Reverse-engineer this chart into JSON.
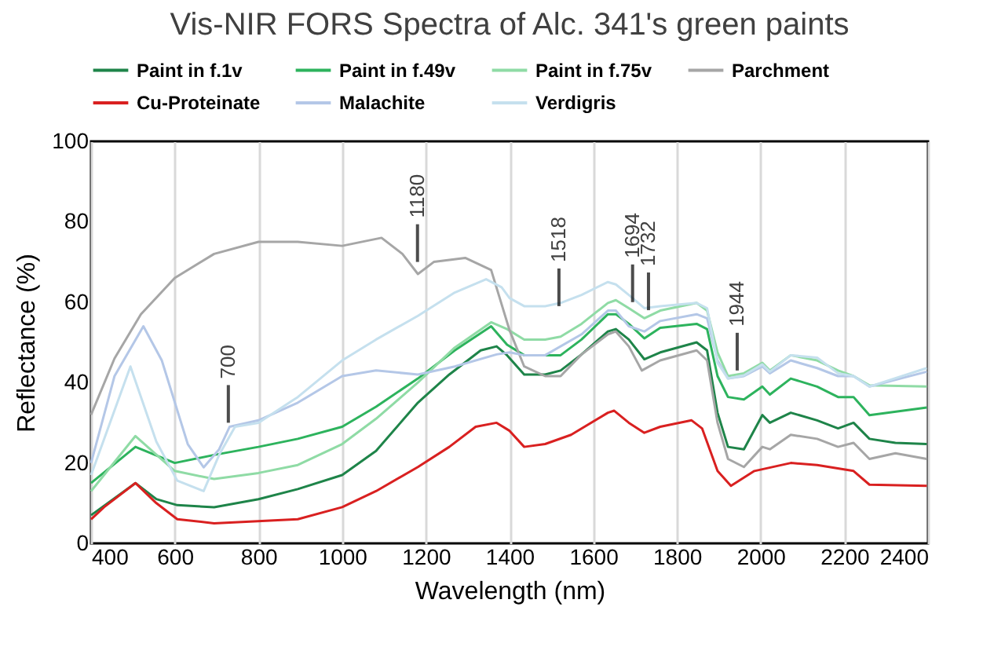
{
  "chart_data": {
    "type": "line",
    "title": "Vis-NIR FORS Spectra of Alc. 341's green paints",
    "xlabel": "Wavelength (nm)",
    "ylabel": "Reflectance (%)",
    "xlim": [
      400,
      2400
    ],
    "xticks": [
      400,
      600,
      800,
      1000,
      1200,
      1400,
      1600,
      1800,
      2000,
      2200,
      2400
    ],
    "ylim": [
      0,
      100
    ],
    "yticks": [
      0,
      20,
      40,
      60,
      80,
      100
    ],
    "grid": "x",
    "legend": "top",
    "annotations": [
      {
        "text": "700",
        "x": 728,
        "y": 30
      },
      {
        "text": "1180",
        "x": 1180,
        "y": 70
      },
      {
        "text": "1518",
        "x": 1518,
        "y": 59
      },
      {
        "text": "1694",
        "x": 1694,
        "y": 60
      },
      {
        "text": "1732",
        "x": 1732,
        "y": 58
      },
      {
        "text": "1944",
        "x": 1944,
        "y": 43
      }
    ],
    "series": [
      {
        "name": "Paint in f.1v",
        "color": "#1e8449",
        "x": [
          400,
          506,
          556,
          606,
          694,
          800,
          894,
          1000,
          1081,
          1181,
          1256,
          1331,
          1369,
          1394,
          1435,
          1485,
          1522,
          1572,
          1635,
          1654,
          1685,
          1722,
          1760,
          1847,
          1872,
          1897,
          1922,
          1960,
          2004,
          2022,
          2072,
          2135,
          2185,
          2222,
          2260,
          2322,
          2397
        ],
        "values": [
          7,
          15,
          11,
          9.5,
          9,
          11,
          13.5,
          17,
          23,
          35,
          42,
          48,
          49,
          46.8,
          42,
          42,
          43,
          47,
          52.7,
          53.3,
          50.7,
          45.8,
          47.5,
          50,
          48,
          32.5,
          24,
          23.4,
          31.9,
          30,
          32.5,
          30.6,
          28.6,
          30,
          26,
          25,
          24.7
        ]
      },
      {
        "name": "Paint in f.49v",
        "color": "#2db35d",
        "x": [
          400,
          506,
          600,
          694,
          800,
          894,
          1000,
          1081,
          1181,
          1269,
          1356,
          1394,
          1435,
          1485,
          1522,
          1572,
          1635,
          1654,
          1685,
          1722,
          1760,
          1847,
          1872,
          1897,
          1922,
          1960,
          2004,
          2022,
          2072,
          2135,
          2185,
          2222,
          2260,
          2397
        ],
        "values": [
          15,
          24,
          20,
          22,
          24,
          26,
          29,
          34,
          41,
          48,
          54,
          49.4,
          46.8,
          46.8,
          46.8,
          50.7,
          57,
          57,
          54.6,
          51,
          53.6,
          54.6,
          53.3,
          41.6,
          36.4,
          35.8,
          39,
          37,
          41,
          39,
          36.4,
          36.4,
          31.9,
          33.8
        ]
      },
      {
        "name": "Paint in f.75v",
        "color": "#8fdba5",
        "x": [
          400,
          506,
          600,
          694,
          800,
          894,
          1000,
          1081,
          1181,
          1269,
          1356,
          1394,
          1435,
          1485,
          1522,
          1572,
          1635,
          1654,
          1685,
          1722,
          1760,
          1847,
          1872,
          1897,
          1922,
          1960,
          2004,
          2022,
          2072,
          2135,
          2185,
          2222,
          2260,
          2397
        ],
        "values": [
          13,
          26.7,
          18,
          16,
          17.5,
          19.5,
          24.7,
          31,
          40,
          48.7,
          55,
          53.3,
          50.7,
          50.7,
          51.4,
          54.6,
          59.8,
          60.5,
          58.5,
          56,
          57.9,
          59.8,
          57.9,
          47.5,
          41.6,
          42.3,
          44.9,
          43,
          46.8,
          45.5,
          43,
          41.6,
          39.3,
          39
        ]
      },
      {
        "name": "Parchment",
        "color": "#a6a6a6",
        "x": [
          400,
          456,
          519,
          600,
          694,
          800,
          894,
          1000,
          1094,
          1144,
          1181,
          1219,
          1294,
          1356,
          1400,
          1435,
          1485,
          1522,
          1572,
          1635,
          1654,
          1685,
          1716,
          1760,
          1847,
          1872,
          1897,
          1922,
          1960,
          2004,
          2022,
          2072,
          2135,
          2185,
          2222,
          2260,
          2322,
          2397
        ],
        "values": [
          32,
          46,
          57,
          66,
          72,
          75,
          75,
          74,
          76,
          72,
          67,
          70,
          71,
          68,
          53,
          44,
          41.6,
          41.6,
          47,
          52,
          52.7,
          49,
          43,
          45.5,
          48,
          45.5,
          30,
          21,
          19,
          24,
          23.4,
          27,
          26,
          24,
          25,
          21,
          22.4,
          21
        ]
      },
      {
        "name": "Cu-Proteinate",
        "color": "#d92020",
        "x": [
          400,
          431,
          506,
          556,
          606,
          694,
          894,
          1000,
          1081,
          1181,
          1256,
          1319,
          1369,
          1400,
          1435,
          1485,
          1547,
          1635,
          1650,
          1685,
          1722,
          1760,
          1835,
          1860,
          1897,
          1929,
          1985,
          2072,
          2135,
          2222,
          2260,
          2397
        ],
        "values": [
          6,
          9,
          15,
          10,
          6,
          5,
          6,
          9,
          13,
          19,
          24,
          29,
          30,
          28,
          24,
          24.7,
          27,
          32.5,
          33,
          30,
          27.5,
          29,
          30.6,
          28.6,
          18,
          14.3,
          18,
          20,
          19.5,
          18,
          14.6,
          14.3
        ]
      },
      {
        "name": "Malachite",
        "color": "#b4c7e7",
        "x": [
          400,
          456,
          525,
          569,
          631,
          669,
          706,
          731,
          800,
          894,
          1000,
          1081,
          1181,
          1269,
          1369,
          1400,
          1435,
          1485,
          1572,
          1635,
          1654,
          1685,
          1722,
          1760,
          1847,
          1872,
          1897,
          1922,
          1960,
          2004,
          2022,
          2072,
          2135,
          2185,
          2222,
          2260,
          2397
        ],
        "values": [
          20,
          41.6,
          54,
          45.5,
          24.7,
          18.9,
          23.4,
          29,
          30.6,
          35,
          41.6,
          43,
          42,
          44,
          47,
          47.5,
          46.8,
          46.8,
          52,
          57.9,
          57.9,
          54,
          52.7,
          55.3,
          57,
          56,
          45.5,
          41,
          41.6,
          44,
          42.3,
          45.5,
          43.6,
          41.6,
          41.6,
          39,
          42.7
        ]
      },
      {
        "name": "Verdigris",
        "color": "#c5e0ee",
        "x": [
          400,
          494,
          556,
          606,
          669,
          706,
          744,
          800,
          894,
          1000,
          1081,
          1181,
          1269,
          1344,
          1381,
          1400,
          1435,
          1485,
          1522,
          1572,
          1635,
          1654,
          1685,
          1722,
          1760,
          1847,
          1872,
          1897,
          1922,
          1960,
          2004,
          2022,
          2072,
          2135,
          2185,
          2222,
          2260,
          2397
        ],
        "values": [
          17,
          44,
          25.3,
          15.6,
          13,
          22,
          29,
          30,
          36.4,
          45.5,
          50.7,
          56.6,
          62.4,
          65.7,
          63.7,
          61,
          59,
          59,
          59.8,
          61.8,
          65,
          64.4,
          61.8,
          58.5,
          59,
          59.8,
          58.5,
          44.9,
          41,
          41.8,
          44.5,
          42.7,
          46.8,
          46.2,
          42.3,
          41.6,
          39,
          43.6
        ]
      }
    ]
  }
}
